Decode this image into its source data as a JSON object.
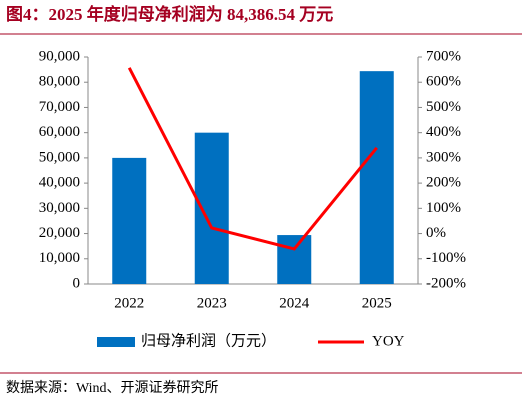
{
  "chart_data": {
    "type": "bar",
    "title": "图4：2025 年度归母净利润为 84,386.54 万元",
    "source": "数据来源：Wind、开源证券研究所",
    "categories": [
      "2022",
      "2023",
      "2024",
      "2025"
    ],
    "series": [
      {
        "name": "归母净利润（万元）",
        "type": "bar",
        "color": "#0070c0",
        "values": [
          50000,
          60000,
          19400,
          84386.54
        ]
      },
      {
        "name": "YOY",
        "type": "line",
        "axis": "y2",
        "color": "#ff0000",
        "values": [
          657,
          22,
          -61,
          340
        ]
      }
    ],
    "ylim": [
      0,
      90000
    ],
    "yticks": [
      0,
      {
        "value": 10000,
        "label": "10,000"
      },
      {
        "value": 20000,
        "label": "20,000"
      },
      {
        "value": 30000,
        "label": "30,000"
      },
      {
        "value": 40000,
        "label": "40,000"
      },
      {
        "value": 50000,
        "label": "50,000"
      },
      {
        "value": 60000,
        "label": "60,000"
      },
      {
        "value": 70000,
        "label": "70,000"
      },
      {
        "value": 80000,
        "label": "80,000"
      },
      {
        "value": 90000,
        "label": "90,000"
      }
    ],
    "y2lim": [
      -200,
      700
    ],
    "y2ticks": [
      {
        "value": -200,
        "label": "-200%"
      },
      {
        "value": -100,
        "label": "-100%"
      },
      {
        "value": 0,
        "label": "0%"
      },
      {
        "value": 100,
        "label": "100%"
      },
      {
        "value": 200,
        "label": "200%"
      },
      {
        "value": 300,
        "label": "300%"
      },
      {
        "value": 400,
        "label": "400%"
      },
      {
        "value": 500,
        "label": "500%"
      },
      {
        "value": 600,
        "label": "600%"
      },
      {
        "value": 700,
        "label": "700%"
      }
    ],
    "grid": false,
    "legend": "bottom"
  }
}
